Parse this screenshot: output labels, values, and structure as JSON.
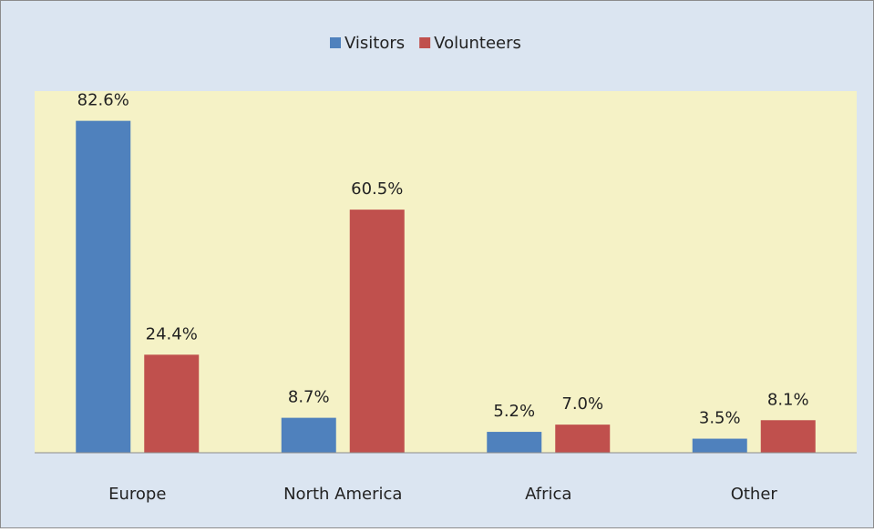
{
  "chart_data": {
    "type": "bar",
    "categories": [
      "Europe",
      "North America",
      "Africa",
      "Other"
    ],
    "series": [
      {
        "name": "Visitors",
        "color": "#4f81bd",
        "values": [
          82.6,
          8.7,
          5.2,
          3.5
        ],
        "value_labels": [
          "82.6%",
          "8.7%",
          "5.2%",
          "3.5%"
        ]
      },
      {
        "name": "Volunteers",
        "color": "#c0504d",
        "values": [
          24.4,
          60.5,
          7.0,
          8.1
        ],
        "value_labels": [
          "24.4%",
          "60.5%",
          "7.0%",
          "8.1%"
        ]
      }
    ],
    "ylim": [
      0,
      90
    ],
    "legend": "top",
    "plot_background": "#f5f2c6"
  }
}
